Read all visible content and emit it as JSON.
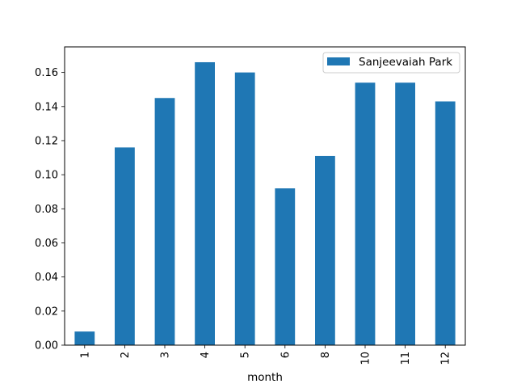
{
  "chart_data": {
    "type": "bar",
    "title": "",
    "xlabel": "month",
    "ylabel": "",
    "categories": [
      "1",
      "2",
      "3",
      "4",
      "5",
      "6",
      "8",
      "10",
      "11",
      "12"
    ],
    "series": [
      {
        "name": "Sanjeevaiah Park",
        "color": "#1f77b4",
        "values": [
          0.008,
          0.116,
          0.145,
          0.166,
          0.16,
          0.092,
          0.111,
          0.154,
          0.154,
          0.143
        ]
      }
    ],
    "ylim": [
      0,
      0.175
    ],
    "yticks": [
      0.0,
      0.02,
      0.04,
      0.06,
      0.08,
      0.1,
      0.12,
      0.14,
      0.16
    ],
    "ytick_labels": [
      "0.00",
      "0.02",
      "0.04",
      "0.06",
      "0.08",
      "0.10",
      "0.12",
      "0.14",
      "0.16"
    ],
    "xtick_rotation": "vertical",
    "grid": false,
    "legend_position": "upper right"
  }
}
